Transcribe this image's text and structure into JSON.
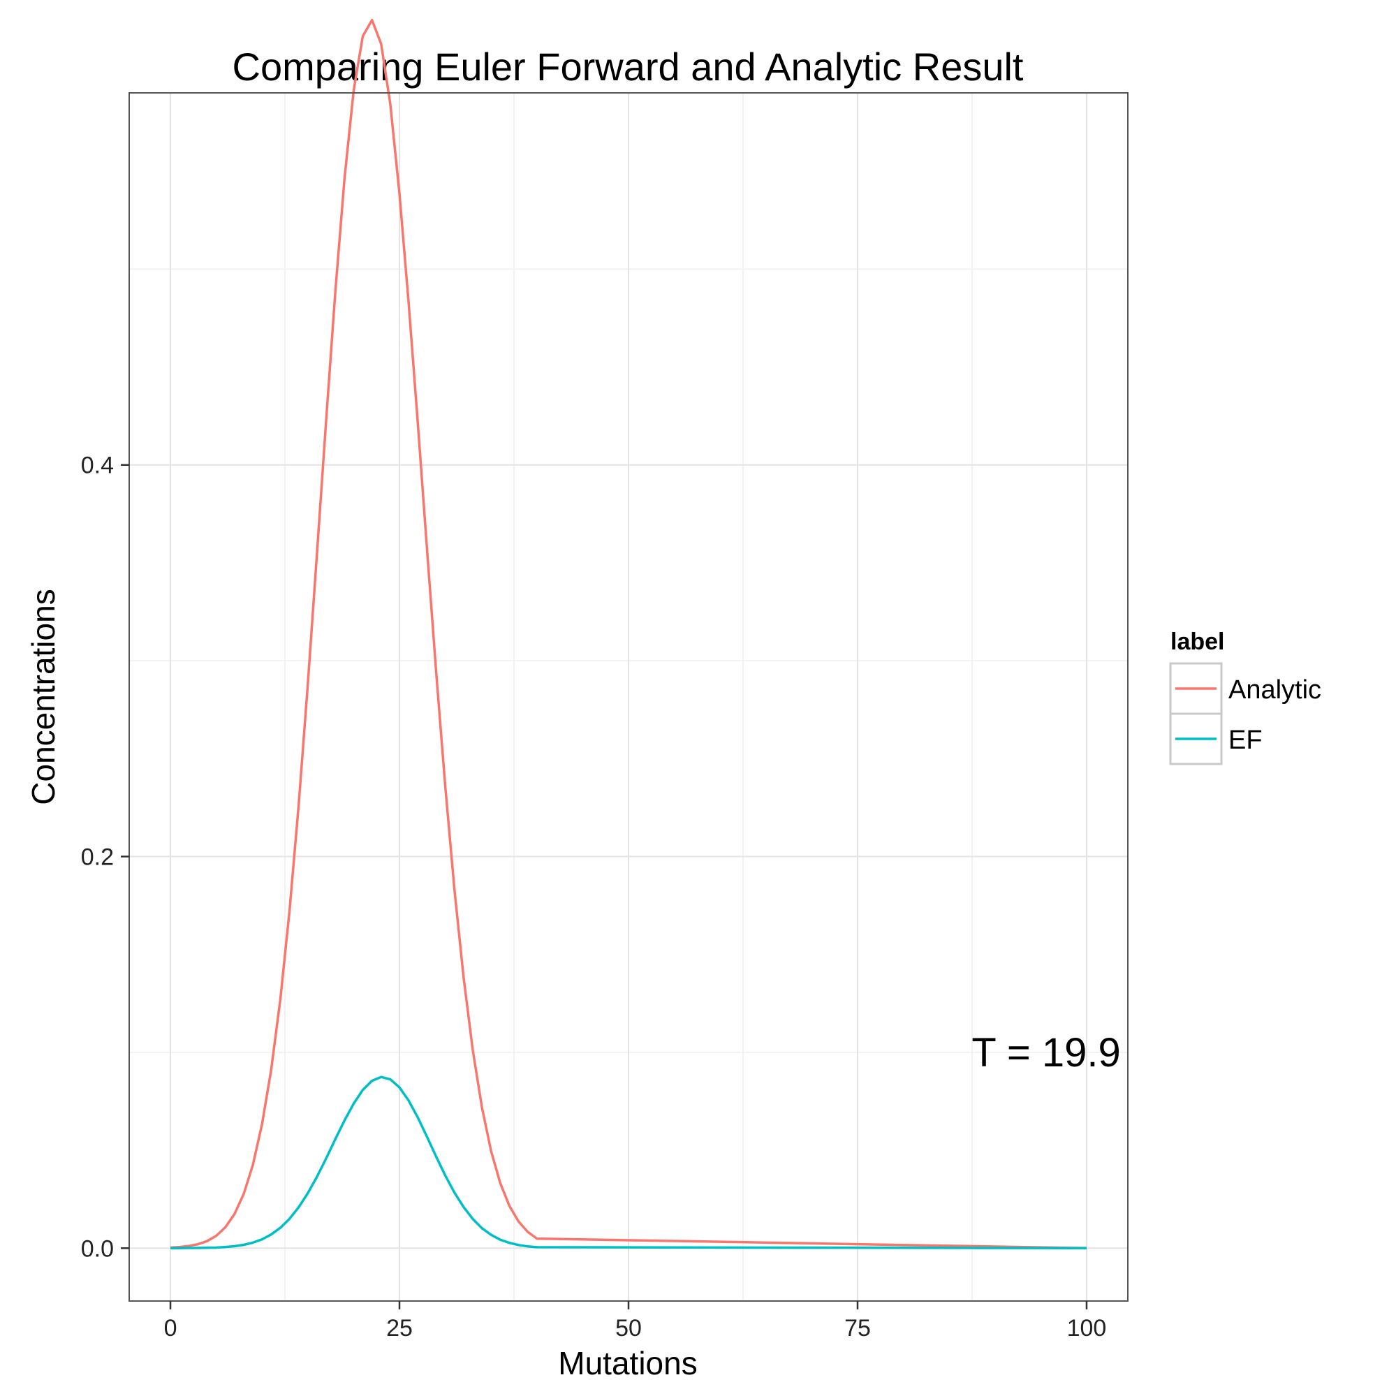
{
  "chart_data": {
    "type": "line",
    "title": "Comparing Euler Forward and Analytic Result",
    "xlabel": "Mutations",
    "ylabel": "Concentrations",
    "xlim": [
      -4.5,
      104.5
    ],
    "ylim": [
      -0.027,
      0.59
    ],
    "x_ticks": [
      0,
      25,
      50,
      75,
      100
    ],
    "x_tick_labels": [
      "0",
      "25",
      "50",
      "75",
      "100"
    ],
    "y_ticks": [
      0.0,
      0.2,
      0.4
    ],
    "y_tick_labels": [
      "0.0",
      "0.2",
      "0.4"
    ],
    "grid": true,
    "legend_title": "label",
    "legend_position": "right",
    "annotation": "T =  19.9",
    "annotation_at": [
      90,
      0.1
    ],
    "series": [
      {
        "name": "Analytic",
        "color": "#F8766D",
        "mean": 19.9,
        "sd": 4.46,
        "x": [
          0,
          1,
          2,
          3,
          4,
          5,
          6,
          7,
          8,
          9,
          10,
          11,
          12,
          13,
          14,
          15,
          16,
          17,
          18,
          19,
          20,
          21,
          22,
          23,
          24,
          25,
          26,
          27,
          28,
          29,
          30,
          31,
          32,
          33,
          34,
          35,
          36,
          37,
          38,
          39,
          40,
          100
        ],
        "values": [
          0.0003,
          0.0006,
          0.0011,
          0.002,
          0.0036,
          0.0063,
          0.0107,
          0.0175,
          0.0277,
          0.0425,
          0.0633,
          0.0911,
          0.1273,
          0.1724,
          0.2264,
          0.2881,
          0.3549,
          0.4232,
          0.4886,
          0.5462,
          0.5911,
          0.619,
          0.6272,
          0.615,
          0.5842,
          0.5386,
          0.483,
          0.4212,
          0.3573,
          0.2945,
          0.2358,
          0.1832,
          0.1381,
          0.1011,
          0.0719,
          0.0496,
          0.0332,
          0.0216,
          0.0136,
          0.0083,
          0.0049,
          0.0
        ]
      },
      {
        "name": "EF",
        "color": "#00BFC4",
        "mean": 19.1,
        "sd": 4.5,
        "x": [
          0,
          1,
          2,
          3,
          4,
          5,
          6,
          7,
          8,
          9,
          10,
          11,
          12,
          13,
          14,
          15,
          16,
          17,
          18,
          19,
          20,
          21,
          22,
          23,
          24,
          25,
          26,
          27,
          28,
          29,
          30,
          31,
          32,
          33,
          34,
          35,
          36,
          37,
          38,
          39,
          40,
          100
        ],
        "values": [
          0.0,
          0.0,
          0.0001,
          0.0001,
          0.0002,
          0.0003,
          0.0006,
          0.001,
          0.0017,
          0.0028,
          0.0045,
          0.007,
          0.0104,
          0.015,
          0.0209,
          0.0281,
          0.0365,
          0.0459,
          0.0557,
          0.0652,
          0.0738,
          0.0808,
          0.0855,
          0.0874,
          0.0862,
          0.0821,
          0.0754,
          0.0667,
          0.0569,
          0.0468,
          0.0371,
          0.0284,
          0.021,
          0.0149,
          0.0102,
          0.0068,
          0.0043,
          0.0027,
          0.0016,
          0.0009,
          0.0005,
          0.0
        ]
      }
    ]
  }
}
